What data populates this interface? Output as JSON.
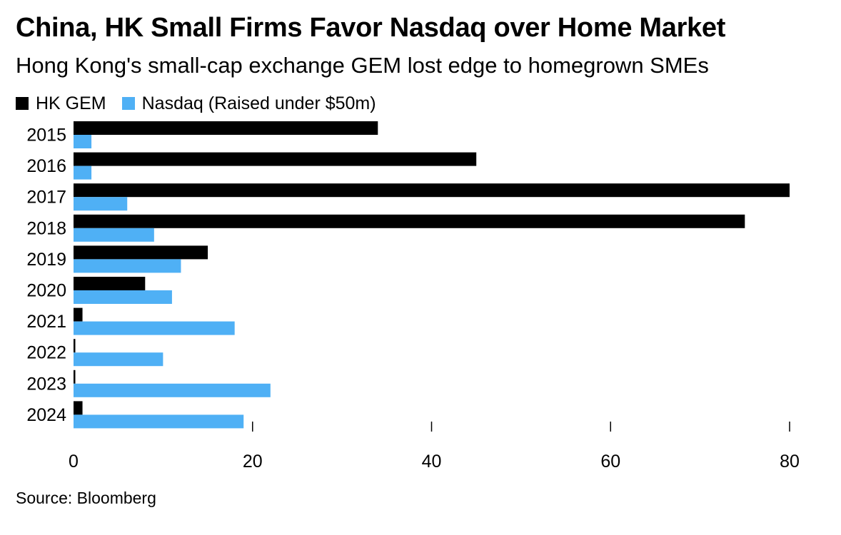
{
  "title": "China, HK Small Firms Favor Nasdaq over Home Market",
  "subtitle": "Hong Kong's small-cap exchange GEM lost edge to homegrown SMEs",
  "source": "Source: Bloomberg",
  "legend": [
    {
      "label": "HK GEM",
      "color": "#000000"
    },
    {
      "label": "Nasdaq (Raised under $50m)",
      "color": "#4fb0f5"
    }
  ],
  "chart_data": {
    "type": "bar",
    "orientation": "horizontal",
    "categories": [
      "2015",
      "2016",
      "2017",
      "2018",
      "2019",
      "2020",
      "2021",
      "2022",
      "2023",
      "2024"
    ],
    "series": [
      {
        "name": "HK GEM",
        "color": "#000000",
        "values": [
          34,
          45,
          80,
          75,
          15,
          8,
          1,
          0.2,
          0.2,
          1
        ]
      },
      {
        "name": "Nasdaq (Raised under $50m)",
        "color": "#4fb0f5",
        "values": [
          2,
          2,
          6,
          9,
          12,
          11,
          18,
          10,
          22,
          19
        ]
      }
    ],
    "xticks": [
      "0",
      "20",
      "40",
      "60",
      "80"
    ],
    "xlim": [
      0,
      80
    ],
    "title": "China, HK Small Firms Favor Nasdaq over Home Market",
    "subtitle": "Hong Kong's small-cap exchange GEM lost edge to homegrown SMEs",
    "xlabel": "",
    "ylabel": "",
    "grid": false,
    "legend_position": "top-left"
  }
}
